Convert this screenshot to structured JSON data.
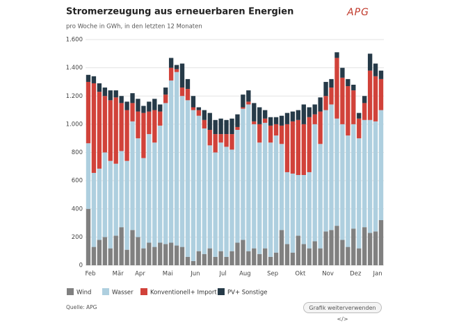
{
  "logo": "APG",
  "button": "Grafik weiterverwenden </>",
  "chart_data": {
    "type": "stacked_bar",
    "title": "Stromerzeugung aus erneuerbaren Energien",
    "subtitle": "pro Woche in GWh, in den letzten 12 Monaten",
    "source": "Quelle: APG",
    "categories": [
      "Feb",
      null,
      null,
      null,
      null,
      "Mär",
      null,
      null,
      null,
      "Apr",
      null,
      null,
      null,
      null,
      "Mai",
      null,
      null,
      null,
      null,
      "Jun",
      null,
      null,
      null,
      null,
      "Jul",
      null,
      null,
      null,
      "Aug",
      null,
      null,
      null,
      null,
      "Sep",
      null,
      null,
      null,
      null,
      "Okt",
      null,
      null,
      null,
      null,
      "Nov",
      null,
      null,
      null,
      null,
      "Dez",
      null,
      null,
      null,
      "Jan",
      null
    ],
    "series": [
      {
        "name": "Wind",
        "color": "#808080",
        "values": [
          400,
          130,
          180,
          200,
          120,
          210,
          270,
          110,
          250,
          200,
          120,
          160,
          130,
          160,
          150,
          160,
          140,
          130,
          60,
          30,
          100,
          80,
          120,
          60,
          100,
          60,
          100,
          160,
          180,
          100,
          120,
          80,
          120,
          60,
          90,
          250,
          150,
          90,
          210,
          150,
          120,
          170,
          120,
          240,
          250,
          280,
          180,
          130,
          260,
          120,
          270,
          230,
          240,
          320
        ]
      },
      {
        "name": "Wasser",
        "color": "#aecfdf",
        "values": [
          465,
          525,
          505,
          600,
          620,
          510,
          540,
          630,
          770,
          700,
          640,
          770,
          740,
          830,
          1000,
          1150,
          1230,
          1070,
          1110,
          1070,
          960,
          890,
          730,
          740,
          770,
          780,
          720,
          800,
          930,
          1040,
          880,
          790,
          890,
          810,
          830,
          610,
          510,
          560,
          430,
          490,
          540,
          830,
          740,
          860,
          890,
          760,
          820,
          790,
          740,
          780,
          760,
          800,
          780,
          780
        ]
      },
      {
        "name": "Konventionell+ Import",
        "color": "#d1423a",
        "values": [
          435,
          635,
          545,
          400,
          430,
          470,
          340,
          360,
          130,
          190,
          320,
          160,
          230,
          100,
          60,
          90,
          20,
          60,
          80,
          20,
          40,
          60,
          110,
          130,
          60,
          90,
          110,
          20,
          10,
          20,
          20,
          130,
          30,
          120,
          80,
          130,
          340,
          370,
          390,
          360,
          390,
          70,
          230,
          100,
          120,
          430,
          330,
          350,
          240,
          140,
          120,
          350,
          320,
          220
        ]
      },
      {
        "name": "PV+ Sonstige",
        "color": "#263a48",
        "values": [
          50,
          50,
          60,
          60,
          70,
          50,
          50,
          60,
          70,
          90,
          50,
          70,
          80,
          50,
          50,
          70,
          30,
          170,
          70,
          80,
          20,
          70,
          120,
          100,
          110,
          100,
          110,
          90,
          90,
          80,
          130,
          120,
          60,
          60,
          50,
          70,
          80,
          70,
          70,
          140,
          70,
          70,
          100,
          100,
          60,
          40,
          70,
          50,
          40,
          40,
          50,
          120,
          90,
          60
        ]
      }
    ],
    "ylim": [
      0,
      1600
    ],
    "yticks": [
      0,
      200,
      400,
      600,
      800,
      {
        "value": 1000,
        "label": "1.000"
      },
      {
        "value": 1200,
        "label": "1.200"
      },
      {
        "value": 1400,
        "label": "1.400"
      },
      {
        "value": 1600,
        "label": "1.600"
      }
    ],
    "grid": true
  }
}
